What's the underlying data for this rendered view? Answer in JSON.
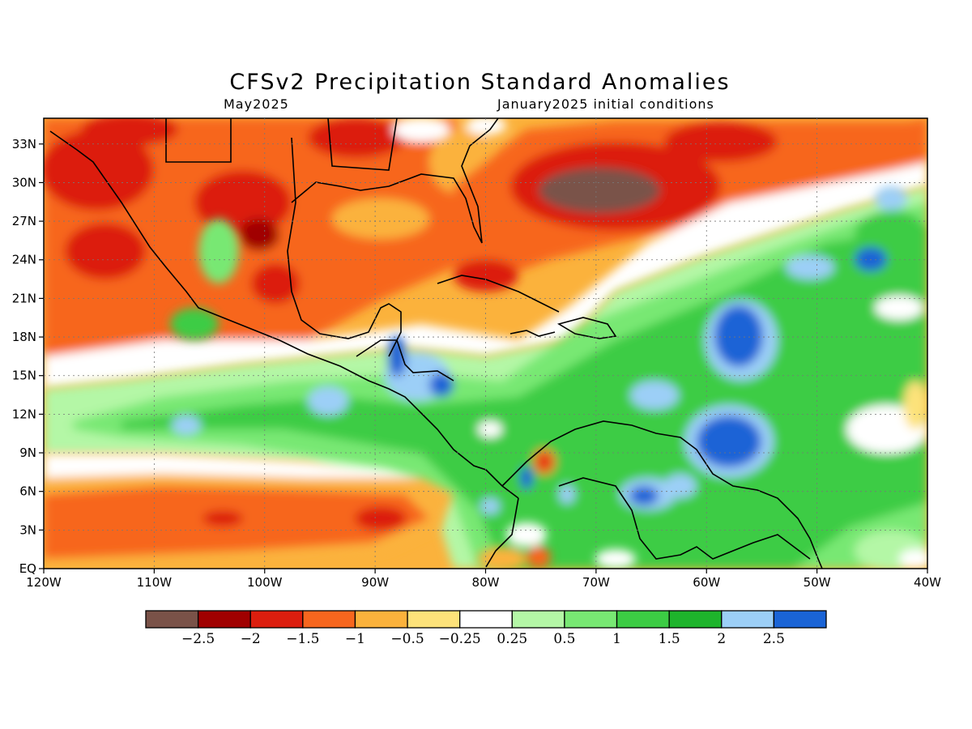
{
  "map": {
    "title": "CFSv2 Precipitation Standard Anomalies",
    "valid_month": "May2025",
    "initial_conditions": "January2025 initial conditions",
    "lat_ticks": [
      "EQ",
      "3N",
      "6N",
      "9N",
      "12N",
      "15N",
      "18N",
      "21N",
      "24N",
      "27N",
      "30N",
      "33N"
    ],
    "lat_values": [
      0,
      3,
      6,
      9,
      12,
      15,
      18,
      21,
      24,
      27,
      30,
      33
    ],
    "lon_ticks": [
      "120W",
      "110W",
      "100W",
      "90W",
      "80W",
      "70W",
      "60W",
      "50W",
      "40W"
    ],
    "lon_values": [
      -120,
      -110,
      -100,
      -90,
      -80,
      -70,
      -60,
      -50,
      -40
    ],
    "lon_range": [
      -120,
      -40
    ],
    "lat_range": [
      0,
      35
    ],
    "grid": "dotted"
  },
  "colorbar": {
    "labels": [
      "-2.5",
      "-2",
      "-1.5",
      "-1",
      "-0.5",
      "-0.25",
      "0.25",
      "0.5",
      "1",
      "1.5",
      "2",
      "2.5"
    ],
    "colors": [
      "#7a5248",
      "#a00000",
      "#dc1e0e",
      "#f7661e",
      "#fbb23c",
      "#fde27a",
      "#ffffff",
      "#b4f7a6",
      "#78e873",
      "#3ccc44",
      "#1eb42c",
      "#9ccff7",
      "#1a64d6"
    ]
  }
}
